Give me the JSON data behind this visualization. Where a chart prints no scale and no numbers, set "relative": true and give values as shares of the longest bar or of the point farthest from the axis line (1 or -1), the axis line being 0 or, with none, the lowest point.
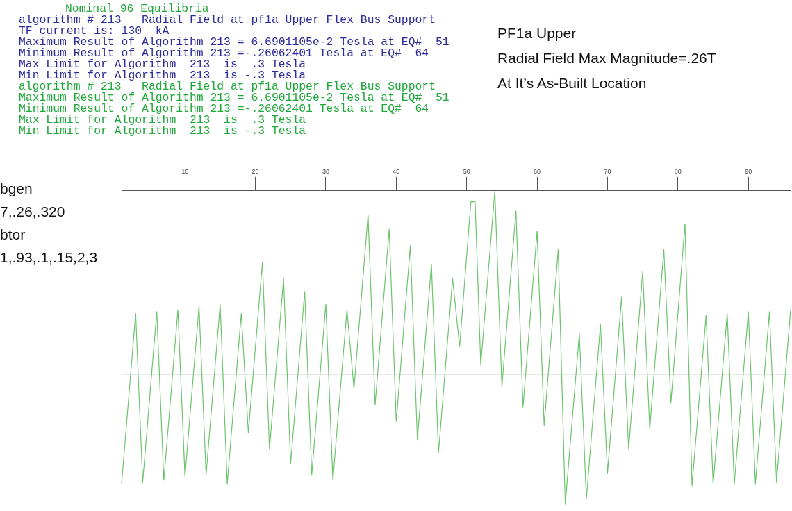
{
  "chart_data": {
    "type": "line",
    "title": "Nominal 96 Equilibria",
    "relative": true,
    "x": [
      1,
      3,
      4,
      6,
      7,
      9,
      10,
      12,
      13,
      15,
      16,
      18,
      19,
      21,
      22,
      24,
      25,
      27,
      28,
      30,
      31,
      33,
      34,
      36,
      37,
      39,
      40,
      42,
      43,
      45,
      46,
      48,
      49,
      50.6,
      51.2,
      52,
      54,
      55,
      57,
      58,
      60,
      61,
      63,
      64,
      66,
      67,
      69,
      70,
      72,
      73,
      75,
      76,
      78,
      79,
      81,
      82,
      84,
      85,
      87,
      88,
      90,
      91,
      93,
      94,
      96
    ],
    "series": [
      {
        "color": "#6cc46c",
        "values": [
          -0.6,
          0.33,
          -0.59,
          0.34,
          -0.58,
          0.35,
          -0.56,
          0.37,
          -0.55,
          0.38,
          -0.6,
          0.33,
          -0.32,
          0.61,
          -0.41,
          0.52,
          -0.49,
          0.45,
          -0.55,
          0.38,
          -0.58,
          0.35,
          -0.08,
          0.87,
          -0.17,
          0.79,
          -0.26,
          0.7,
          -0.36,
          0.6,
          -0.43,
          0.52,
          0.15,
          0.94,
          0.94,
          0.05,
          1.0,
          -0.07,
          0.89,
          -0.18,
          0.78,
          -0.28,
          0.68,
          -0.71,
          0.22,
          -0.68,
          0.27,
          -0.54,
          0.42,
          -0.41,
          0.56,
          -0.3,
          0.68,
          -0.16,
          0.82,
          -0.61,
          0.32,
          -0.6,
          0.33,
          -0.6,
          0.34,
          -0.6,
          0.34,
          -0.59,
          0.35
        ]
      }
    ],
    "xlim": [
      1,
      96
    ],
    "xticks": [
      10,
      20,
      30,
      40,
      50,
      60,
      70,
      80,
      90
    ],
    "grid": false,
    "legend": false,
    "marker": "none",
    "line_style": "solid",
    "annotations": [
      "algorithm # 213   Radial Field at pf1a Upper Flex Bus Support",
      "TF current is: 130  kA",
      "Maximum Result of Algorithm 213 = 6.6901105e-2 Tesla at EQ#  51",
      "Minimum Result of Algorithm 213 =-.26062401 Tesla at EQ#  64",
      "Max Limit for Algorithm  213  is  .3 Tesla",
      "Min Limit for Algorithm  213  is -.3 Tesla",
      "algorithm # 213   Radial Field at pf1a Upper Flex Bus Support",
      "Maximum Result of Algorithm 213 = 6.6901105e-2 Tesla at EQ#  51",
      "Minimum Result of Algorithm 213 =-.26062401 Tesla at EQ#  64",
      "Max Limit for Algorithm  213  is  .3 Tesla",
      "Min Limit for Algorithm  213  is -.3 Tesla",
      "PF1a Upper",
      "Radial Field Max Magnitude=.26T",
      "At It’s As-Built Location",
      "bgen",
      "7,.26,.320",
      "btor",
      "1,.93,.1,.15,2,3"
    ]
  }
}
